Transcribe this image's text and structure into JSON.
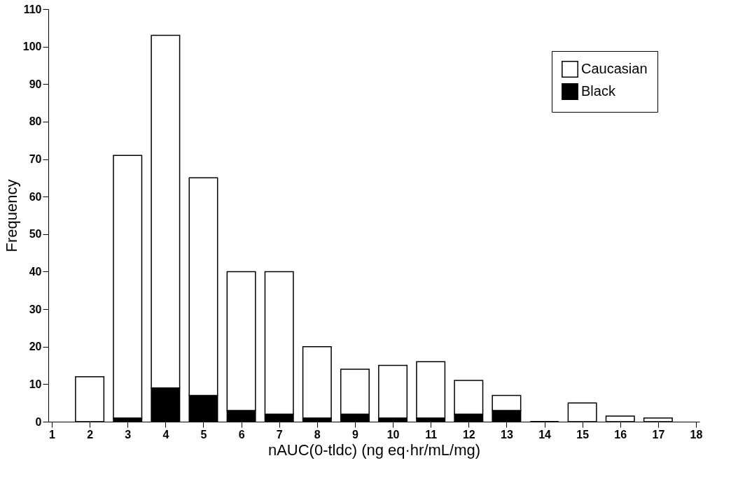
{
  "chart_data": {
    "type": "bar",
    "stacked": true,
    "xlabel": "nAUC(0-tldc) (ng eq·hr/mL/mg)",
    "ylabel": "Frequency",
    "x": [
      2,
      3,
      4,
      5,
      6,
      7,
      8,
      9,
      10,
      11,
      12,
      13,
      14,
      15,
      16,
      17
    ],
    "series": [
      {
        "name": "Black",
        "color": "#000000",
        "values": [
          0,
          1,
          9,
          7,
          3,
          2,
          1,
          2,
          1,
          1,
          2,
          3,
          0,
          0,
          0,
          0
        ]
      },
      {
        "name": "Caucasian",
        "color": "#ffffff",
        "values": [
          12,
          70,
          94,
          58,
          37,
          38,
          19,
          12,
          14,
          15,
          9,
          4,
          0,
          5,
          1.5,
          1
        ]
      }
    ],
    "xlim": [
      1,
      18
    ],
    "xticks": [
      1,
      2,
      3,
      4,
      5,
      6,
      7,
      8,
      9,
      10,
      11,
      12,
      13,
      14,
      15,
      16,
      17,
      18
    ],
    "ylim": [
      0,
      110
    ],
    "yticks": [
      0,
      10,
      20,
      30,
      40,
      50,
      60,
      70,
      80,
      90,
      100,
      110
    ],
    "grid": false,
    "legend": "top right"
  }
}
